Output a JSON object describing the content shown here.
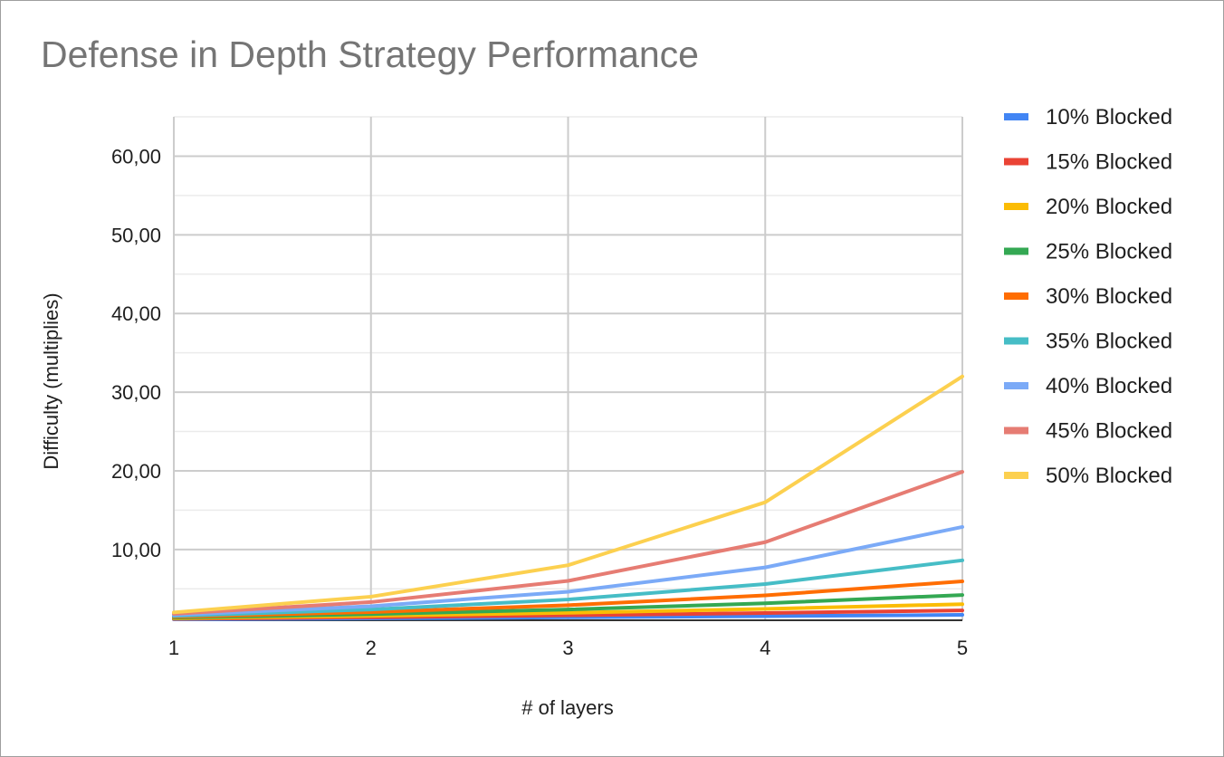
{
  "chart_data": {
    "type": "line",
    "title": "Defense in Depth Strategy Performance",
    "xlabel": "# of layers",
    "ylabel": "Difficulty (multiplies)",
    "x": [
      1,
      2,
      3,
      4,
      5
    ],
    "x_tick_labels": [
      "1",
      "2",
      "3",
      "4",
      "5"
    ],
    "xlim": [
      1,
      5
    ],
    "ylim": [
      1,
      65
    ],
    "y_ticks": [
      10,
      20,
      30,
      40,
      50,
      60
    ],
    "y_tick_labels": [
      "10,00",
      "20,00",
      "30,00",
      "40,00",
      "50,00",
      "60,00"
    ],
    "grid": true,
    "legend_position": "right",
    "series": [
      {
        "name": "10% Blocked",
        "color": "#4285f4",
        "values": [
          1.11,
          1.23,
          1.37,
          1.52,
          1.69
        ]
      },
      {
        "name": "15% Blocked",
        "color": "#ea4335",
        "values": [
          1.18,
          1.38,
          1.63,
          1.92,
          2.25
        ]
      },
      {
        "name": "20% Blocked",
        "color": "#fbbc04",
        "values": [
          1.25,
          1.56,
          1.95,
          2.44,
          3.05
        ]
      },
      {
        "name": "25% Blocked",
        "color": "#34a853",
        "values": [
          1.33,
          1.78,
          2.37,
          3.16,
          4.21
        ]
      },
      {
        "name": "30% Blocked",
        "color": "#ff6d01",
        "values": [
          1.43,
          2.04,
          2.92,
          4.16,
          5.95
        ]
      },
      {
        "name": "35% Blocked",
        "color": "#46bdc6",
        "values": [
          1.54,
          2.37,
          3.64,
          5.6,
          8.62
        ]
      },
      {
        "name": "40% Blocked",
        "color": "#7baaf7",
        "values": [
          1.67,
          2.78,
          4.63,
          7.72,
          12.86
        ]
      },
      {
        "name": "45% Blocked",
        "color": "#e67c73",
        "values": [
          1.82,
          3.31,
          6.01,
          10.93,
          19.87
        ]
      },
      {
        "name": "50% Blocked",
        "color": "#fcd04f",
        "values": [
          2,
          4,
          8,
          16,
          32
        ]
      }
    ]
  }
}
